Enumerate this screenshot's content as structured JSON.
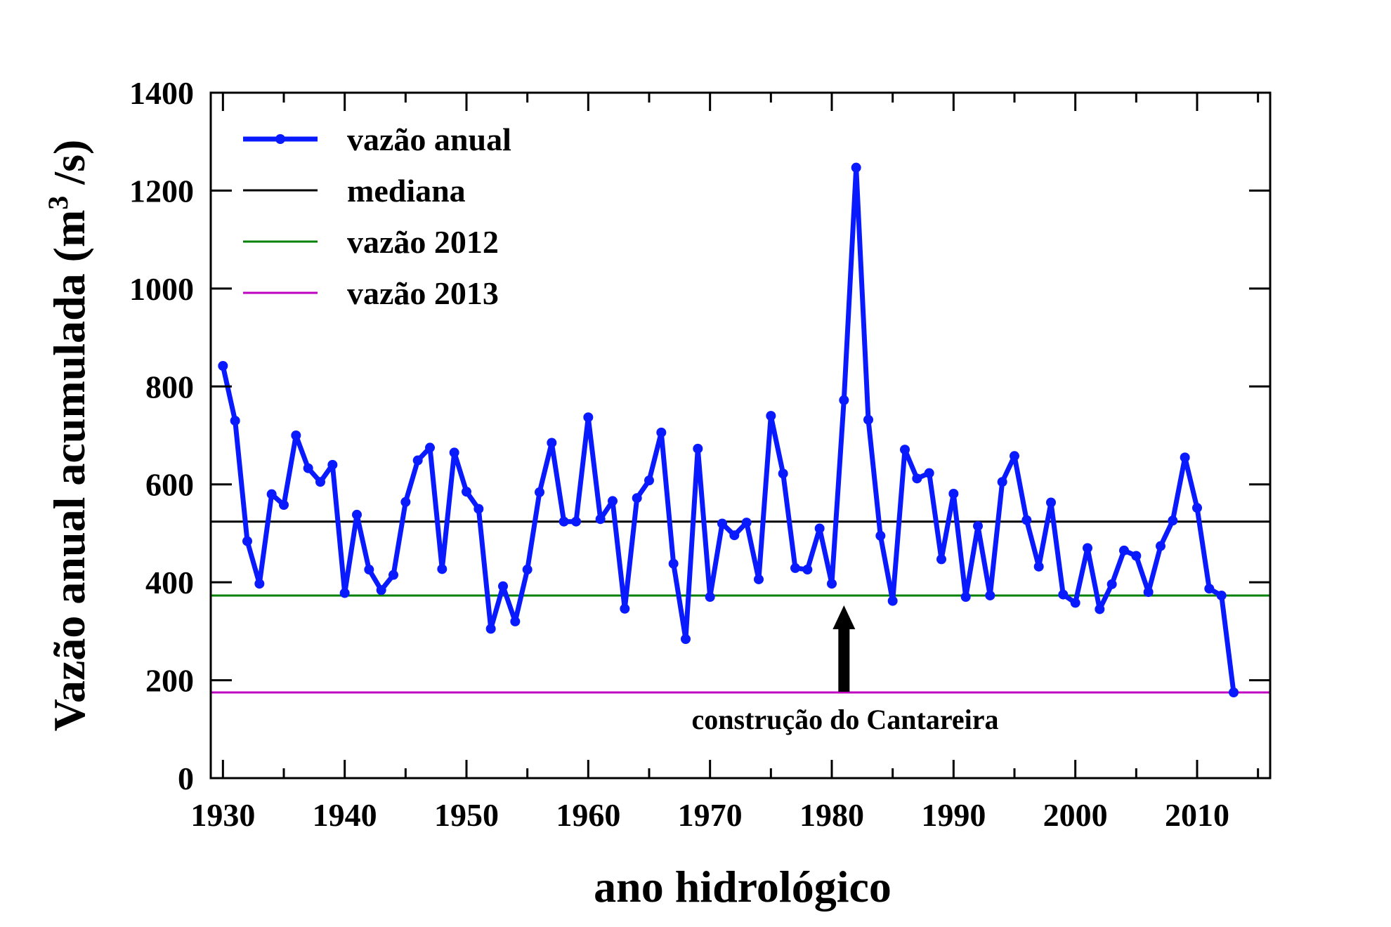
{
  "chart_data": {
    "type": "line",
    "xlabel": "ano hidrológico",
    "ylabel": "Vazão anual acumulada (m",
    "ylabel_sup": "3",
    "ylabel_end": " /s)",
    "xlim": [
      1929,
      2016
    ],
    "ylim": [
      0,
      1400
    ],
    "xticks": [
      1930,
      1940,
      1950,
      1960,
      1970,
      1980,
      1990,
      2000,
      2010
    ],
    "yticks": [
      0,
      200,
      400,
      600,
      800,
      1000,
      1200,
      1400
    ],
    "grid": false,
    "legend_position": "top-left",
    "series": [
      {
        "name": "vazão anual",
        "color": "#0a1aff",
        "marker": "circle",
        "x": [
          1930,
          1931,
          1932,
          1933,
          1934,
          1935,
          1936,
          1937,
          1938,
          1939,
          1940,
          1941,
          1942,
          1943,
          1944,
          1945,
          1946,
          1947,
          1948,
          1949,
          1950,
          1951,
          1952,
          1953,
          1954,
          1955,
          1956,
          1957,
          1958,
          1959,
          1960,
          1961,
          1962,
          1963,
          1964,
          1965,
          1966,
          1967,
          1968,
          1969,
          1970,
          1971,
          1972,
          1973,
          1974,
          1975,
          1976,
          1977,
          1978,
          1979,
          1980,
          1981,
          1982,
          1983,
          1984,
          1985,
          1986,
          1987,
          1988,
          1989,
          1990,
          1991,
          1992,
          1993,
          1994,
          1995,
          1996,
          1997,
          1998,
          1999,
          2000,
          2001,
          2002,
          2003,
          2004,
          2005,
          2006,
          2007,
          2008,
          2009,
          2010,
          2011,
          2012,
          2013
        ],
        "y": [
          842,
          730,
          484,
          397,
          580,
          558,
          700,
          633,
          605,
          640,
          378,
          538,
          426,
          384,
          415,
          564,
          649,
          675,
          427,
          665,
          585,
          550,
          305,
          392,
          320,
          426,
          584,
          685,
          524,
          524,
          737,
          529,
          566,
          346,
          572,
          608,
          706,
          438,
          284,
          673,
          370,
          520,
          496,
          522,
          406,
          740,
          622,
          429,
          426,
          510,
          397,
          772,
          1247,
          732,
          495,
          362,
          671,
          612,
          623,
          447,
          581,
          370,
          515,
          373,
          605,
          658,
          527,
          432,
          563,
          375,
          358,
          470,
          345,
          396,
          465,
          454,
          380,
          474,
          526,
          655,
          552,
          387,
          373,
          175
        ]
      }
    ],
    "reference_lines": [
      {
        "name": "mediana",
        "y": 524,
        "color": "#000000"
      },
      {
        "name": "vazão 2012",
        "y": 373,
        "color": "#008000"
      },
      {
        "name": "vazão 2013",
        "y": 175,
        "color": "#c000c0"
      }
    ],
    "annotations": [
      {
        "text": "construção do Cantareira",
        "x": 1981,
        "y": 370,
        "arrow": "up"
      }
    ]
  }
}
